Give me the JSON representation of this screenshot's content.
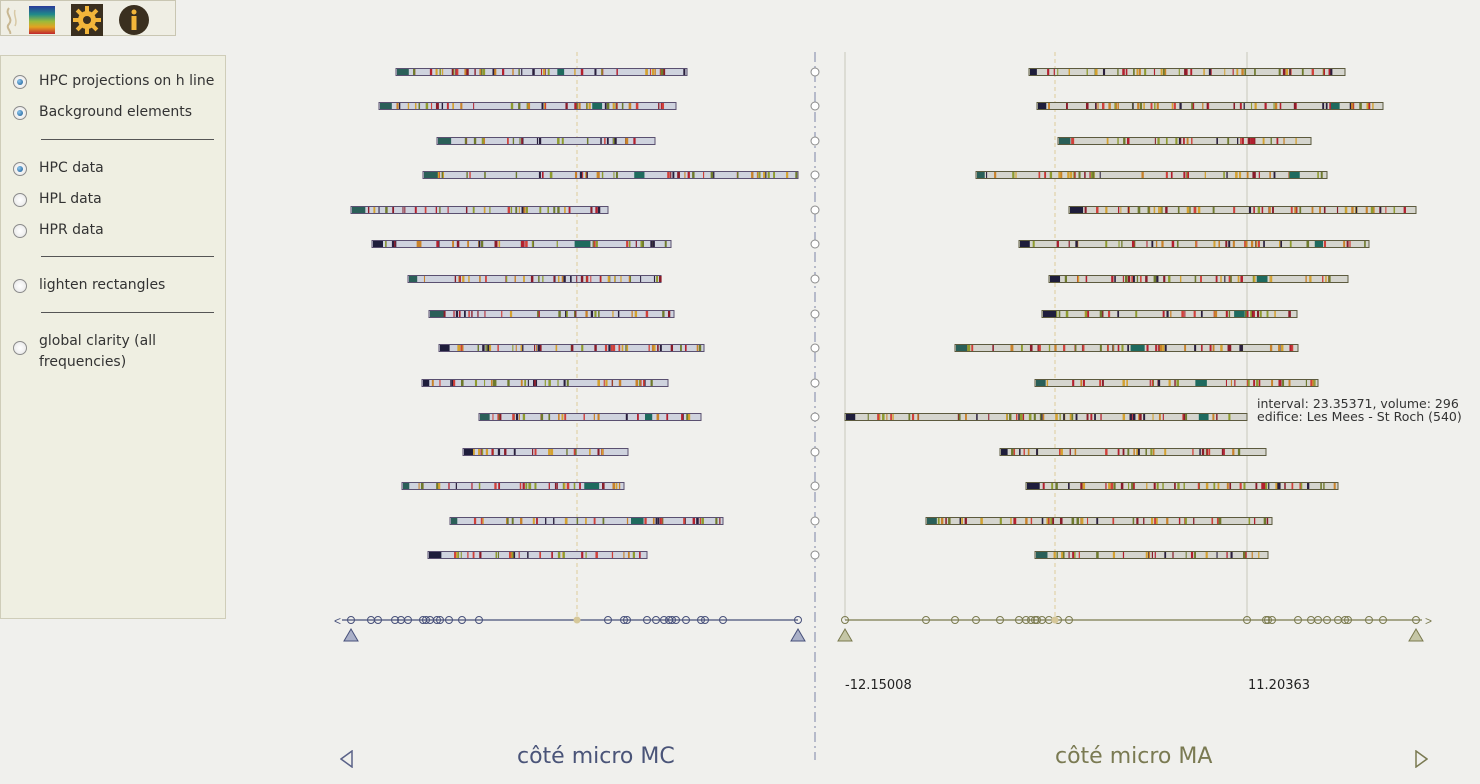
{
  "toolbar": {
    "icons": [
      "wave-icon",
      "color-scale-icon",
      "gear-icon",
      "info-icon"
    ]
  },
  "options": {
    "group1": [
      {
        "label": "HPC projections on h line",
        "checked": true
      },
      {
        "label": "Background elements",
        "checked": true
      }
    ],
    "group2": [
      {
        "label": "HPC data",
        "checked": true
      },
      {
        "label": "HPL data",
        "checked": false
      },
      {
        "label": "HPR data",
        "checked": false
      }
    ],
    "group3": [
      {
        "label": "lighten rectangles",
        "checked": false
      }
    ],
    "group4": [
      {
        "label": "global clarity (all frequencies)",
        "checked": false
      }
    ]
  },
  "tooltip": {
    "line1": "interval: 23.35371, volume: 296",
    "line2": "edifice: Les Mees - St Roch (540)"
  },
  "axis": {
    "ma_min_label": "-12.15008",
    "ma_max_label": "11.20363"
  },
  "footer": {
    "mc_label": "côté micro MC",
    "ma_label": "côté micro MA"
  },
  "colors": {
    "mc": "#47507a",
    "ma": "#7a7a4e",
    "bar_fill": "#cfd3de",
    "bar_fill_ma": "#d5d5ce",
    "accent_line": "#d6c89a"
  }
}
